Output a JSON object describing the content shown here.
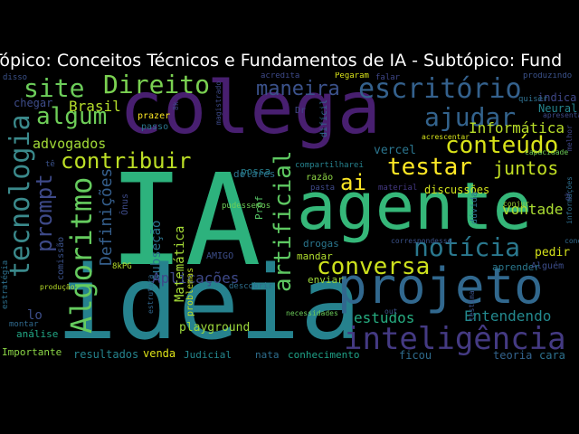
{
  "title": "Tópico: Conceitos Técnicos e Fundamentos de IA - Subtópico: Fund",
  "colors": {
    "background": "#000000",
    "title": "#ffffff"
  },
  "words": [
    {
      "text": "IA",
      "color": "#2db27d"
    },
    {
      "text": "ideia",
      "color": "#26828e"
    },
    {
      "text": "colega",
      "color": "#481f70"
    },
    {
      "text": "agente",
      "color": "#35b779"
    },
    {
      "text": "projeto",
      "color": "#31688e"
    },
    {
      "text": "inteligência",
      "color": "#443a83"
    },
    {
      "text": "tecnologia",
      "color": "#3b8a8c"
    },
    {
      "text": "escritório",
      "color": "#34618d"
    },
    {
      "text": "site",
      "color": "#6ccd5a"
    },
    {
      "text": "Direito",
      "color": "#7ad151"
    },
    {
      "text": "maneira",
      "color": "#3b528b"
    },
    {
      "text": "ajudar",
      "color": "#33638d"
    },
    {
      "text": "conteúdo",
      "color": "#d8e219"
    },
    {
      "text": "algum",
      "color": "#6ece58"
    },
    {
      "text": "Brasil",
      "color": "#b5de2b"
    },
    {
      "text": "contribuir",
      "color": "#bddf26"
    },
    {
      "text": "testar",
      "color": "#fde725"
    },
    {
      "text": "juntos",
      "color": "#c2df23"
    },
    {
      "text": "Informática",
      "color": "#b8de29"
    },
    {
      "text": "prompt",
      "color": "#3e4a89"
    },
    {
      "text": "Algoritmo",
      "color": "#65cb5e"
    },
    {
      "text": "artificial",
      "color": "#5ec962"
    },
    {
      "text": "ai",
      "color": "#fde725"
    },
    {
      "text": "vontade",
      "color": "#aadc32"
    },
    {
      "text": "notícia",
      "color": "#2a788e"
    },
    {
      "text": "conversa",
      "color": "#cde11d"
    },
    {
      "text": "Definições",
      "color": "#355f8d"
    },
    {
      "text": "Matemática",
      "color": "#a5db36"
    },
    {
      "text": "subseção",
      "color": "#2c738e"
    },
    {
      "text": "Aplicações",
      "color": "#3e4989"
    },
    {
      "text": "estudos",
      "color": "#26ad81"
    },
    {
      "text": "Entendendo",
      "color": "#23898e"
    },
    {
      "text": "advogados",
      "color": "#a2da37"
    },
    {
      "text": "playground",
      "color": "#9dd93b"
    },
    {
      "text": "discussões",
      "color": "#d0e11c"
    },
    {
      "text": "Importante",
      "color": "#8bd646"
    },
    {
      "text": "resultados",
      "color": "#25848e"
    },
    {
      "text": "venda",
      "color": "#dde318"
    },
    {
      "text": "Judicial",
      "color": "#24878e"
    },
    {
      "text": "nata",
      "color": "#2e6e8e"
    },
    {
      "text": "conhecimento",
      "color": "#1fa187"
    },
    {
      "text": "ficou",
      "color": "#2f6c8e"
    },
    {
      "text": "teoria",
      "color": "#33638d"
    },
    {
      "text": "cara",
      "color": "#2d718e"
    },
    {
      "text": "pedir",
      "color": "#d5e21a"
    },
    {
      "text": "Neural",
      "color": "#25858e"
    },
    {
      "text": "indica",
      "color": "#3f4788"
    },
    {
      "text": "quiser",
      "color": "#2e6f8e"
    },
    {
      "text": "vercel",
      "color": "#2b758e"
    },
    {
      "text": "dolares",
      "color": "#2c728e"
    },
    {
      "text": "possa",
      "color": "#277f8e"
    },
    {
      "text": "Prof",
      "color": "#56c667"
    },
    {
      "text": "razão",
      "color": "#8ed645"
    },
    {
      "text": "drogas",
      "color": "#2a768e"
    },
    {
      "text": "mandar",
      "color": "#b0dd2f"
    },
    {
      "text": "enviar",
      "color": "#9fda3a"
    },
    {
      "text": "lo",
      "color": "#3d4e8a"
    },
    {
      "text": "chegar",
      "color": "#3e4c8a"
    },
    {
      "text": "prazer",
      "color": "#fde725"
    },
    {
      "text": "passo",
      "color": "#2a768e"
    },
    {
      "text": "Dr",
      "color": "#3f4788"
    },
    {
      "text": "difícil",
      "color": "#31678e"
    },
    {
      "text": "compartilharei",
      "color": "#26828e"
    },
    {
      "text": "pasta",
      "color": "#3e4989"
    },
    {
      "text": "material",
      "color": "#443983"
    },
    {
      "text": "dúvida",
      "color": "#2e6f8e"
    },
    {
      "text": "aprender",
      "color": "#2a788e"
    },
    {
      "text": "Alguém",
      "color": "#3d4d8a"
    },
    {
      "text": "comissão",
      "color": "#3b528b"
    },
    {
      "text": "estratégia",
      "color": "#2d708e"
    },
    {
      "text": "produção",
      "color": "#b8de29"
    },
    {
      "text": "análise",
      "color": "#22a785"
    },
    {
      "text": "montar",
      "color": "#306a8e"
    },
    {
      "text": "estrutura",
      "color": "#31678e"
    },
    {
      "text": "problemas",
      "color": "#c0df25"
    },
    {
      "text": "descobrir",
      "color": "#2e6e8e"
    },
    {
      "text": "necessidades",
      "color": "#6ccd5a"
    },
    {
      "text": "AMIGO",
      "color": "#3d4e8a"
    },
    {
      "text": "8kPG",
      "color": "#b5de2b"
    },
    {
      "text": "Ônus",
      "color": "#3e4c8a"
    },
    {
      "text": "disso",
      "color": "#3b528b"
    },
    {
      "text": "acredita",
      "color": "#3e4a89"
    },
    {
      "text": "Pegaram",
      "color": "#d8e219"
    },
    {
      "text": "falar",
      "color": "#3f4788"
    },
    {
      "text": "produzindo",
      "color": "#3b528b"
    },
    {
      "text": "acrescentar",
      "color": "#d5e21a"
    },
    {
      "text": "capacidade",
      "color": "#6ece58"
    },
    {
      "text": "apresentar",
      "color": "#3e4989"
    },
    {
      "text": "melhor",
      "color": "#3f4788"
    },
    {
      "text": "informações",
      "color": "#2e6e8e"
    },
    {
      "text": "conjur",
      "color": "#9fda3a"
    },
    {
      "text": "correspondesse",
      "color": "#3b528b"
    },
    {
      "text": "conosco",
      "color": "#306a8e"
    },
    {
      "text": "testima",
      "color": "#3b528b"
    },
    {
      "text": "out",
      "color": "#3b528b"
    },
    {
      "text": "pudessemos",
      "color": "#6ece58"
    },
    {
      "text": "magistrado",
      "color": "#3e4a89"
    },
    {
      "text": "tê",
      "color": "#3b528b"
    },
    {
      "text": "8k",
      "color": "#3f4788"
    },
    {
      "text": "gk",
      "color": "#3e4a89"
    }
  ]
}
